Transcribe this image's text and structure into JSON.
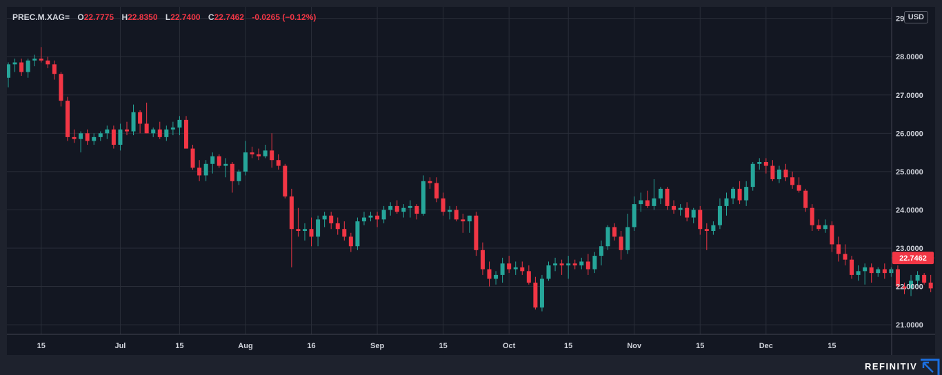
{
  "legend": {
    "symbol": "PREC.M.XAG=",
    "open_label": "O",
    "open": "22.7775",
    "high_label": "H",
    "high": "22.8350",
    "low_label": "L",
    "low": "22.7400",
    "close_label": "C",
    "close": "22.7462",
    "change": "-0.0265 (−0.12%)"
  },
  "currency": "USD",
  "last_price_label": "22.7462",
  "brand": "REFINITIV",
  "colors": {
    "up": "#26a69a",
    "down": "#f23645",
    "grid": "#2a2e39",
    "text": "#d1d4dc"
  },
  "chart_data": {
    "type": "candlestick",
    "ylim": [
      20.75,
      29.3
    ],
    "y_ticks": [
      "29.0000",
      "28.0000",
      "27.0000",
      "26.0000",
      "25.0000",
      "24.0000",
      "23.0000",
      "22.0000",
      "21.0000"
    ],
    "y_tick_values": [
      29,
      28,
      27,
      26,
      25,
      24,
      23,
      22,
      21
    ],
    "x_tick_labels": [
      "15",
      "Jul",
      "15",
      "Aug",
      "16",
      "Sep",
      "15",
      "Oct",
      "15",
      "Nov",
      "15",
      "Dec",
      "15"
    ],
    "x_tick_index": [
      5,
      17,
      26,
      36,
      46,
      56,
      66,
      76,
      85,
      95,
      105,
      115,
      125
    ],
    "grid": true,
    "candles": [
      [
        27.45,
        27.85,
        27.2,
        27.8
      ],
      [
        27.8,
        27.95,
        27.6,
        27.85
      ],
      [
        27.85,
        27.95,
        27.5,
        27.6
      ],
      [
        27.6,
        27.95,
        27.45,
        27.9
      ],
      [
        27.9,
        28.05,
        27.75,
        27.95
      ],
      [
        27.95,
        28.25,
        27.85,
        27.9
      ],
      [
        27.9,
        28.0,
        27.7,
        27.8
      ],
      [
        27.8,
        27.9,
        27.4,
        27.55
      ],
      [
        27.55,
        27.6,
        26.7,
        26.85
      ],
      [
        26.85,
        26.95,
        25.8,
        25.9
      ],
      [
        25.9,
        26.1,
        25.75,
        25.85
      ],
      [
        25.85,
        26.05,
        25.5,
        26.0
      ],
      [
        26.0,
        26.1,
        25.7,
        25.8
      ],
      [
        25.8,
        26.0,
        25.7,
        25.9
      ],
      [
        25.9,
        26.05,
        25.8,
        26.0
      ],
      [
        26.0,
        26.2,
        25.85,
        26.1
      ],
      [
        26.1,
        26.2,
        25.6,
        25.7
      ],
      [
        25.7,
        26.25,
        25.55,
        26.1
      ],
      [
        26.1,
        26.3,
        25.95,
        26.05
      ],
      [
        26.05,
        26.75,
        25.95,
        26.55
      ],
      [
        26.55,
        26.6,
        26.0,
        26.25
      ],
      [
        26.25,
        26.8,
        26.0,
        26.0
      ],
      [
        26.0,
        26.15,
        25.9,
        26.1
      ],
      [
        26.1,
        26.3,
        25.85,
        25.9
      ],
      [
        25.9,
        26.2,
        25.8,
        26.1
      ],
      [
        26.1,
        26.3,
        25.95,
        26.15
      ],
      [
        26.15,
        26.45,
        25.95,
        26.35
      ],
      [
        26.35,
        26.45,
        25.6,
        25.6
      ],
      [
        25.6,
        25.7,
        25.05,
        25.1
      ],
      [
        25.1,
        25.3,
        24.75,
        24.9
      ],
      [
        24.9,
        25.3,
        24.75,
        25.2
      ],
      [
        25.2,
        25.5,
        24.95,
        25.4
      ],
      [
        25.4,
        25.45,
        25.1,
        25.15
      ],
      [
        25.15,
        25.35,
        24.85,
        25.2
      ],
      [
        25.2,
        25.25,
        24.45,
        24.75
      ],
      [
        24.75,
        25.05,
        24.65,
        25.0
      ],
      [
        25.0,
        25.8,
        24.9,
        25.5
      ],
      [
        25.5,
        25.65,
        25.35,
        25.45
      ],
      [
        25.45,
        25.6,
        25.3,
        25.4
      ],
      [
        25.4,
        25.7,
        25.35,
        25.55
      ],
      [
        25.55,
        26.0,
        25.1,
        25.3
      ],
      [
        25.3,
        25.45,
        25.05,
        25.15
      ],
      [
        25.15,
        25.2,
        24.3,
        24.35
      ],
      [
        24.35,
        24.55,
        22.5,
        23.5
      ],
      [
        23.5,
        24.05,
        23.3,
        23.45
      ],
      [
        23.45,
        23.65,
        23.2,
        23.5
      ],
      [
        23.5,
        23.8,
        23.05,
        23.3
      ],
      [
        23.3,
        23.85,
        23.05,
        23.75
      ],
      [
        23.75,
        23.95,
        23.55,
        23.85
      ],
      [
        23.85,
        23.95,
        23.5,
        23.65
      ],
      [
        23.65,
        23.8,
        23.35,
        23.5
      ],
      [
        23.5,
        23.7,
        23.2,
        23.3
      ],
      [
        23.3,
        23.4,
        22.9,
        23.05
      ],
      [
        23.05,
        23.8,
        22.95,
        23.7
      ],
      [
        23.7,
        23.95,
        23.6,
        23.8
      ],
      [
        23.8,
        23.95,
        23.7,
        23.85
      ],
      [
        23.85,
        23.95,
        23.55,
        23.75
      ],
      [
        23.75,
        24.1,
        23.65,
        24.0
      ],
      [
        24.0,
        24.2,
        23.85,
        24.1
      ],
      [
        24.1,
        24.25,
        23.9,
        23.95
      ],
      [
        23.95,
        24.15,
        23.8,
        24.05
      ],
      [
        24.05,
        24.25,
        23.8,
        24.1
      ],
      [
        24.1,
        24.15,
        23.75,
        23.9
      ],
      [
        23.9,
        24.9,
        23.85,
        24.75
      ],
      [
        24.75,
        24.85,
        24.55,
        24.7
      ],
      [
        24.7,
        24.85,
        24.2,
        24.3
      ],
      [
        24.3,
        24.45,
        23.85,
        23.95
      ],
      [
        23.95,
        24.1,
        23.75,
        24.0
      ],
      [
        24.0,
        24.1,
        23.7,
        23.75
      ],
      [
        23.75,
        23.9,
        23.4,
        23.7
      ],
      [
        23.7,
        23.85,
        23.4,
        23.85
      ],
      [
        23.85,
        23.95,
        22.8,
        22.95
      ],
      [
        22.95,
        23.15,
        22.3,
        22.45
      ],
      [
        22.45,
        22.65,
        22.0,
        22.2
      ],
      [
        22.2,
        22.4,
        22.05,
        22.3
      ],
      [
        22.3,
        22.75,
        22.1,
        22.6
      ],
      [
        22.6,
        22.8,
        22.35,
        22.45
      ],
      [
        22.45,
        22.65,
        22.3,
        22.5
      ],
      [
        22.5,
        22.65,
        22.3,
        22.4
      ],
      [
        22.4,
        22.55,
        22.05,
        22.1
      ],
      [
        22.1,
        22.25,
        21.4,
        21.45
      ],
      [
        21.45,
        22.3,
        21.35,
        22.2
      ],
      [
        22.2,
        22.65,
        22.15,
        22.55
      ],
      [
        22.55,
        22.75,
        22.4,
        22.6
      ],
      [
        22.6,
        22.7,
        22.3,
        22.55
      ],
      [
        22.55,
        22.8,
        22.2,
        22.6
      ],
      [
        22.6,
        22.7,
        22.45,
        22.55
      ],
      [
        22.55,
        22.75,
        22.45,
        22.65
      ],
      [
        22.65,
        22.85,
        22.3,
        22.45
      ],
      [
        22.45,
        22.9,
        22.35,
        22.8
      ],
      [
        22.8,
        23.2,
        22.55,
        23.05
      ],
      [
        23.05,
        23.6,
        22.95,
        23.55
      ],
      [
        23.55,
        23.65,
        23.2,
        23.3
      ],
      [
        23.3,
        23.45,
        22.7,
        22.95
      ],
      [
        22.95,
        23.9,
        22.85,
        23.55
      ],
      [
        23.55,
        24.35,
        23.45,
        24.15
      ],
      [
        24.15,
        24.45,
        23.95,
        24.25
      ],
      [
        24.25,
        24.5,
        24.05,
        24.1
      ],
      [
        24.1,
        24.8,
        24.0,
        24.3
      ],
      [
        24.3,
        24.6,
        24.15,
        24.55
      ],
      [
        24.55,
        24.6,
        24.0,
        24.1
      ],
      [
        24.1,
        24.25,
        23.9,
        24.0
      ],
      [
        24.0,
        24.15,
        23.85,
        24.05
      ],
      [
        24.05,
        24.2,
        23.7,
        23.8
      ],
      [
        23.8,
        24.05,
        23.65,
        24.0
      ],
      [
        24.0,
        24.1,
        23.35,
        23.5
      ],
      [
        23.5,
        23.65,
        22.95,
        23.45
      ],
      [
        23.45,
        23.7,
        23.35,
        23.6
      ],
      [
        23.6,
        24.3,
        23.5,
        24.1
      ],
      [
        24.1,
        24.45,
        23.85,
        24.3
      ],
      [
        24.3,
        24.6,
        24.15,
        24.55
      ],
      [
        24.55,
        24.75,
        24.15,
        24.25
      ],
      [
        24.25,
        24.75,
        24.1,
        24.6
      ],
      [
        24.6,
        25.25,
        24.5,
        25.2
      ],
      [
        25.2,
        25.35,
        25.05,
        25.25
      ],
      [
        25.25,
        25.35,
        24.95,
        25.15
      ],
      [
        25.15,
        25.3,
        24.75,
        24.8
      ],
      [
        24.8,
        25.15,
        24.7,
        25.05
      ],
      [
        25.05,
        25.2,
        24.75,
        24.85
      ],
      [
        24.85,
        25.0,
        24.55,
        24.65
      ],
      [
        24.65,
        24.85,
        24.45,
        24.5
      ],
      [
        24.5,
        24.55,
        23.95,
        24.05
      ],
      [
        24.05,
        24.15,
        23.45,
        23.6
      ],
      [
        23.6,
        23.75,
        23.45,
        23.5
      ],
      [
        23.5,
        23.75,
        23.4,
        23.6
      ],
      [
        23.6,
        23.7,
        22.9,
        23.1
      ],
      [
        23.1,
        23.3,
        22.65,
        22.85
      ],
      [
        22.85,
        23.1,
        22.55,
        22.7
      ],
      [
        22.7,
        22.8,
        22.2,
        22.3
      ],
      [
        22.3,
        22.55,
        22.15,
        22.4
      ],
      [
        22.4,
        22.6,
        22.05,
        22.5
      ],
      [
        22.5,
        22.6,
        22.1,
        22.35
      ],
      [
        22.35,
        22.5,
        22.25,
        22.45
      ],
      [
        22.45,
        22.6,
        22.2,
        22.35
      ],
      [
        22.35,
        22.5,
        22.25,
        22.45
      ],
      [
        22.45,
        22.55,
        21.95,
        22.0
      ],
      [
        22.0,
        22.1,
        21.8,
        21.95
      ],
      [
        21.95,
        22.3,
        21.75,
        22.15
      ],
      [
        22.15,
        22.4,
        22.0,
        22.3
      ],
      [
        22.3,
        22.35,
        22.05,
        22.1
      ],
      [
        22.1,
        22.3,
        21.85,
        21.95
      ],
      [
        21.95,
        22.25,
        21.45,
        22.1
      ],
      [
        22.1,
        22.5,
        21.95,
        22.45
      ],
      [
        22.45,
        22.6,
        22.3,
        22.35
      ],
      [
        22.35,
        22.5,
        22.2,
        22.2
      ],
      [
        22.2,
        22.6,
        22.1,
        22.5
      ],
      [
        22.5,
        22.85,
        22.45,
        22.8
      ],
      [
        22.7775,
        22.835,
        22.74,
        22.7462
      ]
    ]
  }
}
